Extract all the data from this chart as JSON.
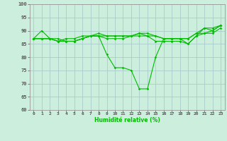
{
  "xlabel": "Humidité relative (%)",
  "xlim": [
    -0.5,
    23.5
  ],
  "ylim": [
    60,
    100
  ],
  "yticks": [
    60,
    65,
    70,
    75,
    80,
    85,
    90,
    95,
    100
  ],
  "xticks": [
    0,
    1,
    2,
    3,
    4,
    5,
    6,
    7,
    8,
    9,
    10,
    11,
    12,
    13,
    14,
    15,
    16,
    17,
    18,
    19,
    20,
    21,
    22,
    23
  ],
  "background_color": "#cceedd",
  "grid_color": "#aacccc",
  "line_color": "#00bb00",
  "lines": [
    [
      87,
      87,
      87,
      86,
      86,
      86,
      87,
      88,
      88,
      88,
      88,
      88,
      88,
      89,
      89,
      88,
      87,
      87,
      87,
      87,
      89,
      89,
      90,
      92
    ],
    [
      87,
      87,
      87,
      86,
      87,
      87,
      88,
      88,
      89,
      88,
      88,
      88,
      88,
      89,
      88,
      88,
      87,
      87,
      87,
      87,
      89,
      91,
      91,
      92
    ],
    [
      87,
      90,
      87,
      87,
      86,
      86,
      87,
      88,
      88,
      81,
      76,
      76,
      75,
      68,
      68,
      80,
      87,
      87,
      87,
      85,
      88,
      91,
      90,
      92
    ],
    [
      87,
      87,
      87,
      86,
      86,
      86,
      87,
      88,
      88,
      87,
      87,
      87,
      88,
      88,
      88,
      86,
      86,
      86,
      86,
      85,
      88,
      89,
      89,
      91
    ]
  ]
}
